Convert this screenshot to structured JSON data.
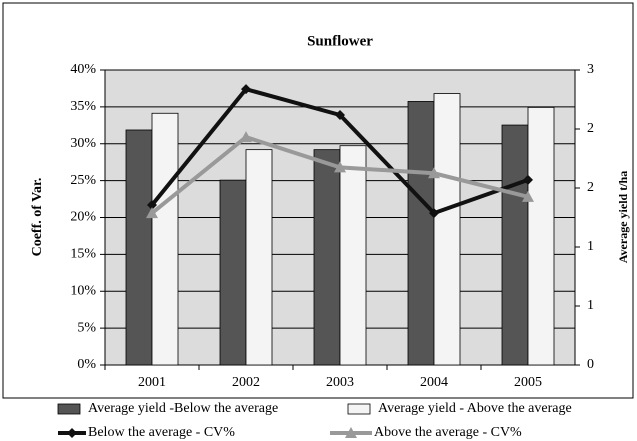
{
  "chart_data": {
    "type": "bar-line",
    "title": "Sunflower",
    "y_label": "Coeff. of Var.",
    "y2_label": "Average yield t/ha",
    "categories": [
      "2001",
      "2002",
      "2003",
      "2004",
      "2005"
    ],
    "ylim": [
      0,
      40
    ],
    "yticks": [
      {
        "value": 0,
        "label": "0%"
      },
      {
        "value": 5,
        "label": "5%"
      },
      {
        "value": 10,
        "label": "10%"
      },
      {
        "value": 15,
        "label": "15%"
      },
      {
        "value": 20,
        "label": "20%"
      },
      {
        "value": 25,
        "label": "25%"
      },
      {
        "value": 30,
        "label": "30%"
      },
      {
        "value": 35,
        "label": "35%"
      },
      {
        "value": 40,
        "label": "40%"
      }
    ],
    "y2lim": [
      0,
      3
    ],
    "y2ticks": [
      {
        "value": 0,
        "label": "0"
      },
      {
        "value": 0.6,
        "label": "1"
      },
      {
        "value": 1.2,
        "label": "1"
      },
      {
        "value": 1.8,
        "label": "2"
      },
      {
        "value": 2.4,
        "label": "2"
      },
      {
        "value": 3,
        "label": "3"
      }
    ],
    "grid": true,
    "legend": "bottom",
    "series": [
      {
        "name": "Average yield -Below the average",
        "kind": "bar",
        "axis": "y2",
        "color": "#555555",
        "values": [
          2.39,
          1.88,
          2.19,
          2.68,
          2.44
        ]
      },
      {
        "name": "Average yield - Above the average",
        "kind": "bar",
        "axis": "y2",
        "color": "#f4f4f4",
        "values": [
          2.56,
          2.19,
          2.23,
          2.76,
          2.62
        ]
      },
      {
        "name": "Below the average - CV%",
        "kind": "line",
        "marker": "diamond",
        "color": "#111111",
        "values": [
          21.7,
          37.4,
          33.9,
          20.6,
          25.1
        ]
      },
      {
        "name": "Above the average - CV%",
        "kind": "line",
        "marker": "triangle",
        "color": "#999999",
        "values": [
          20.6,
          30.9,
          26.8,
          26.0,
          22.8
        ]
      }
    ]
  }
}
